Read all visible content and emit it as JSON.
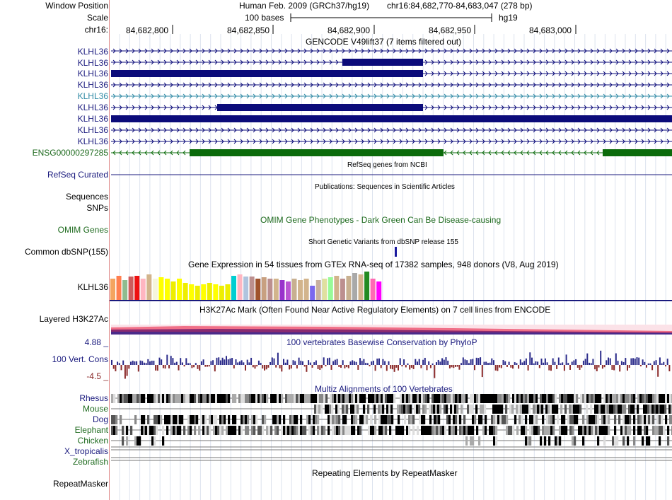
{
  "header": {
    "window_position_label": "Window Position",
    "scale_label": "Scale",
    "chrom_label": "chr16:",
    "assembly": "Human Feb. 2009 (GRCh37/hg19)",
    "position": "chr16:84,682,770-84,683,047 (278 bp)",
    "scale_text": "100 bases",
    "scale_db": "hg19",
    "ruler_ticks": [
      "84,682,800",
      "84,682,850",
      "84,682,900",
      "84,682,950",
      "84,683,000"
    ]
  },
  "gencode": {
    "title": "GENCODE V49lift37 (7 items filtered out)",
    "rows": [
      {
        "label": "KLHL36"
      },
      {
        "label": "KLHL36"
      },
      {
        "label": "KLHL36"
      },
      {
        "label": "KLHL36"
      },
      {
        "label": "KLHL36"
      },
      {
        "label": "KLHL36"
      },
      {
        "label": "KLHL36"
      },
      {
        "label": "KLHL36"
      },
      {
        "label": "KLHL36"
      },
      {
        "label": "ENSG00000297285"
      }
    ]
  },
  "refseq": {
    "title": "RefSeq genes from NCBI",
    "label": "RefSeq Curated"
  },
  "publications": {
    "title": "Publications: Sequences in Scientific Articles",
    "label": "Sequences"
  },
  "snps": {
    "label": "SNPs"
  },
  "omim": {
    "title": "OMIM Gene Phenotypes - Dark Green Can Be Disease-causing",
    "label": "OMIM Genes"
  },
  "dbsnp": {
    "title": "Short Genetic Variants from dbSNP release 155",
    "label": "Common dbSNP(155)"
  },
  "gtex": {
    "title": "Gene Expression in 54 tissues from GTEx RNA-seq of 17382 samples, 948 donors (V8, Aug 2019)",
    "label": "KLHL36"
  },
  "h3k27ac": {
    "title": "H3K27Ac Mark (Often Found Near Active Regulatory Elements) on 7 cell lines from ENCODE",
    "label": "Layered H3K27Ac"
  },
  "conservation": {
    "title": "100 vertebrates Basewise Conservation by PhyloP",
    "label": "100 Vert. Cons",
    "max": "4.88 _",
    "min": "-4.5 _"
  },
  "multiz": {
    "title": "Multiz Alignments of 100 Vertebrates",
    "species": [
      "Rhesus",
      "Mouse",
      "Dog",
      "Elephant",
      "Chicken",
      "X_tropicalis",
      "Zebrafish"
    ]
  },
  "repeatmasker": {
    "title": "Repeating Elements by RepeatMasker",
    "label": "RepeatMasker"
  },
  "colors": {
    "navy": "#0b0b7a",
    "green": "#0b6b0b",
    "teal": "#2f8aa5",
    "cons_pos": "#2b2b8a",
    "cons_neg": "#8b2a2a"
  }
}
